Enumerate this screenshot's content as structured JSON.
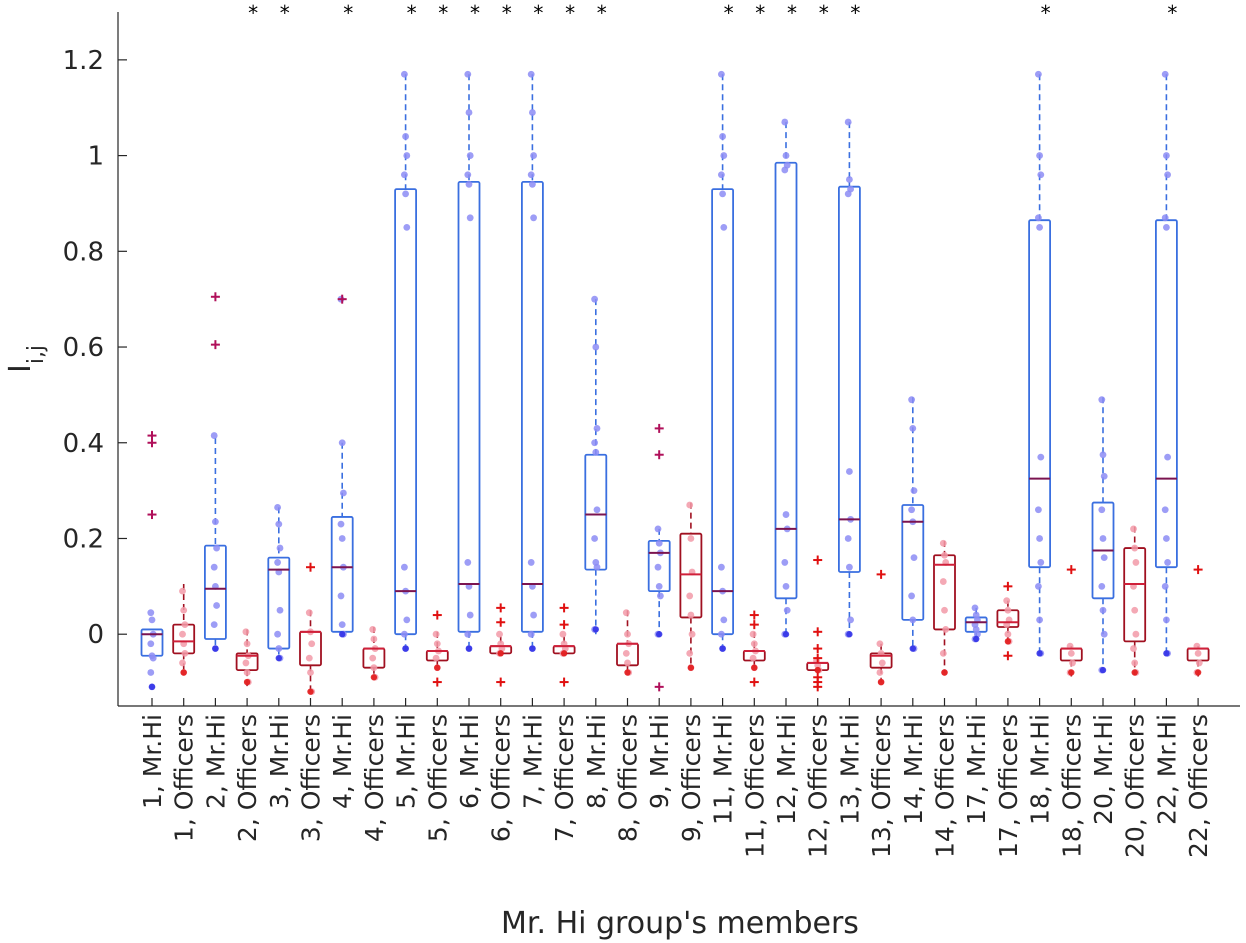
{
  "chart_data": {
    "type": "box",
    "title": "",
    "xlabel": "Mr. Hi group's members",
    "ylabel_main": "I",
    "ylabel_sub": "i,j",
    "ylim": [
      -0.15,
      1.3
    ],
    "yticks": [
      0,
      0.2,
      0.4,
      0.6,
      0.8,
      1,
      1.2
    ],
    "ytick_labels": [
      "0",
      "0.2",
      "0.4",
      "0.6",
      "0.8",
      "1",
      "1.2"
    ],
    "significance_marker": "*",
    "colors": {
      "mrhi_box": "#3a6fe0",
      "mrhi_median": "#7b1450",
      "mrhi_point": "#8c8cf5",
      "mrhi_point_dark": "#2b2be6",
      "officers_box": "#a01020",
      "officers_median": "#d0203a",
      "officers_point": "#f29aa8",
      "officers_point_dark": "#e01010",
      "outlier": "#b0105a",
      "officers_outlier": "#e01010"
    },
    "groups": [
      {
        "label": "1, Mr.Hi",
        "type": "mrhi",
        "q1": -0.045,
        "median": 0.0,
        "q3": 0.01,
        "whisker_low": -0.045,
        "whisker_high": 0.01,
        "outliers": [
          0.415,
          0.4,
          0.25
        ],
        "points": [
          0.045,
          0.03,
          0.0,
          -0.02,
          -0.045,
          -0.05,
          -0.08,
          -0.11
        ],
        "significant": false
      },
      {
        "label": "1, Officers",
        "type": "officers",
        "q1": -0.04,
        "median": -0.015,
        "q3": 0.02,
        "whisker_low": -0.085,
        "whisker_high": 0.105,
        "outliers": [],
        "points": [
          0.09,
          0.05,
          0.02,
          0.0,
          -0.02,
          -0.04,
          -0.06,
          -0.08
        ],
        "significant": false
      },
      {
        "label": "2, Mr.Hi",
        "type": "mrhi",
        "q1": -0.01,
        "median": 0.095,
        "q3": 0.185,
        "whisker_low": -0.035,
        "whisker_high": 0.41,
        "outliers": [
          0.705,
          0.605
        ],
        "points": [
          0.415,
          0.235,
          0.18,
          0.14,
          0.1,
          0.06,
          0.02,
          -0.03
        ],
        "significant": false
      },
      {
        "label": "2, Officers",
        "type": "officers",
        "q1": -0.075,
        "median": -0.045,
        "q3": -0.04,
        "whisker_low": -0.11,
        "whisker_high": 0.01,
        "outliers": [],
        "points": [
          0.005,
          -0.02,
          -0.045,
          -0.06,
          -0.08,
          -0.1
        ],
        "significant": true
      },
      {
        "label": "3, Mr.Hi",
        "type": "mrhi",
        "q1": -0.03,
        "median": 0.135,
        "q3": 0.16,
        "whisker_low": -0.05,
        "whisker_high": 0.265,
        "outliers": [],
        "points": [
          0.265,
          0.23,
          0.18,
          0.15,
          0.13,
          0.05,
          0.0,
          -0.03,
          -0.05
        ],
        "significant": true
      },
      {
        "label": "3, Officers",
        "type": "officers",
        "q1": -0.065,
        "median": 0.005,
        "q3": 0.005,
        "whisker_low": -0.12,
        "whisker_high": 0.05,
        "outliers": [
          0.14
        ],
        "points": [
          0.045,
          0.005,
          -0.02,
          -0.05,
          -0.08,
          -0.12
        ],
        "significant": false
      },
      {
        "label": "4, Mr.Hi",
        "type": "mrhi",
        "q1": 0.005,
        "median": 0.14,
        "q3": 0.245,
        "whisker_low": 0.0,
        "whisker_high": 0.4,
        "outliers": [
          0.7
        ],
        "points": [
          0.7,
          0.4,
          0.295,
          0.23,
          0.2,
          0.14,
          0.08,
          0.02,
          0.0
        ],
        "significant": true
      },
      {
        "label": "4, Officers",
        "type": "officers",
        "q1": -0.07,
        "median": -0.03,
        "q3": -0.03,
        "whisker_low": -0.09,
        "whisker_high": 0.015,
        "outliers": [],
        "points": [
          0.01,
          -0.01,
          -0.03,
          -0.05,
          -0.07,
          -0.09
        ],
        "significant": false
      },
      {
        "label": "5, Mr.Hi",
        "type": "mrhi",
        "q1": 0.0,
        "median": 0.09,
        "q3": 0.93,
        "whisker_low": -0.035,
        "whisker_high": 1.17,
        "outliers": [],
        "points": [
          1.17,
          1.04,
          1.0,
          0.96,
          0.92,
          0.85,
          0.14,
          0.09,
          0.03,
          0.0,
          -0.03
        ],
        "significant": true
      },
      {
        "label": "5, Officers",
        "type": "officers",
        "q1": -0.055,
        "median": -0.035,
        "q3": -0.035,
        "whisker_low": -0.075,
        "whisker_high": 0.005,
        "outliers": [
          0.04,
          -0.1
        ],
        "points": [
          0.0,
          -0.02,
          -0.035,
          -0.05,
          -0.07
        ],
        "significant": true
      },
      {
        "label": "6, Mr.Hi",
        "type": "mrhi",
        "q1": 0.005,
        "median": 0.105,
        "q3": 0.945,
        "whisker_low": -0.035,
        "whisker_high": 1.17,
        "outliers": [],
        "points": [
          1.17,
          1.09,
          1.0,
          0.96,
          0.94,
          0.87,
          0.15,
          0.1,
          0.04,
          0.0,
          -0.03
        ],
        "significant": true
      },
      {
        "label": "6, Officers",
        "type": "officers",
        "q1": -0.04,
        "median": -0.025,
        "q3": -0.025,
        "whisker_low": -0.045,
        "whisker_high": -0.005,
        "outliers": [
          0.055,
          0.025,
          -0.1
        ],
        "points": [
          0.0,
          -0.02,
          -0.03,
          -0.04
        ],
        "significant": true
      },
      {
        "label": "7, Mr.Hi",
        "type": "mrhi",
        "q1": 0.005,
        "median": 0.105,
        "q3": 0.945,
        "whisker_low": -0.035,
        "whisker_high": 1.17,
        "outliers": [],
        "points": [
          1.17,
          1.09,
          1.0,
          0.96,
          0.94,
          0.87,
          0.15,
          0.1,
          0.04,
          0.0,
          -0.03
        ],
        "significant": true
      },
      {
        "label": "7, Officers",
        "type": "officers",
        "q1": -0.04,
        "median": -0.025,
        "q3": -0.025,
        "whisker_low": -0.045,
        "whisker_high": -0.005,
        "outliers": [
          0.055,
          0.02,
          -0.1
        ],
        "points": [
          0.0,
          -0.02,
          -0.03,
          -0.04
        ],
        "significant": true
      },
      {
        "label": "8, Mr.Hi",
        "type": "mrhi",
        "q1": 0.135,
        "median": 0.25,
        "q3": 0.375,
        "whisker_low": 0.0,
        "whisker_high": 0.7,
        "outliers": [],
        "points": [
          0.7,
          0.6,
          0.43,
          0.4,
          0.38,
          0.26,
          0.2,
          0.15,
          0.14,
          0.01
        ],
        "significant": true
      },
      {
        "label": "8, Officers",
        "type": "officers",
        "q1": -0.065,
        "median": -0.02,
        "q3": -0.02,
        "whisker_low": -0.08,
        "whisker_high": 0.05,
        "outliers": [],
        "points": [
          0.045,
          0.0,
          -0.02,
          -0.04,
          -0.06,
          -0.08
        ],
        "significant": false
      },
      {
        "label": "9, Mr.Hi",
        "type": "mrhi",
        "q1": 0.09,
        "median": 0.17,
        "q3": 0.195,
        "whisker_low": -0.01,
        "whisker_high": 0.22,
        "outliers": [
          0.43,
          0.375,
          -0.11
        ],
        "points": [
          0.22,
          0.19,
          0.17,
          0.14,
          0.1,
          0.08,
          0.0
        ],
        "significant": false
      },
      {
        "label": "9, Officers",
        "type": "officers",
        "q1": 0.035,
        "median": 0.125,
        "q3": 0.21,
        "whisker_low": -0.07,
        "whisker_high": 0.275,
        "outliers": [],
        "points": [
          0.27,
          0.2,
          0.13,
          0.08,
          0.04,
          0.0,
          -0.04,
          -0.07
        ],
        "significant": false
      },
      {
        "label": "11, Mr.Hi",
        "type": "mrhi",
        "q1": 0.0,
        "median": 0.09,
        "q3": 0.93,
        "whisker_low": -0.035,
        "whisker_high": 1.17,
        "outliers": [],
        "points": [
          1.17,
          1.04,
          1.0,
          0.96,
          0.92,
          0.85,
          0.14,
          0.09,
          0.03,
          0.0,
          -0.03
        ],
        "significant": true
      },
      {
        "label": "11, Officers",
        "type": "officers",
        "q1": -0.055,
        "median": -0.035,
        "q3": -0.035,
        "whisker_low": -0.075,
        "whisker_high": 0.005,
        "outliers": [
          0.04,
          0.02,
          -0.1
        ],
        "points": [
          0.0,
          -0.02,
          -0.035,
          -0.05,
          -0.07
        ],
        "significant": true
      },
      {
        "label": "12, Mr.Hi",
        "type": "mrhi",
        "q1": 0.075,
        "median": 0.22,
        "q3": 0.985,
        "whisker_low": 0.0,
        "whisker_high": 1.07,
        "outliers": [],
        "points": [
          1.07,
          1.0,
          0.98,
          0.97,
          0.25,
          0.22,
          0.15,
          0.1,
          0.05,
          0.0
        ],
        "significant": true
      },
      {
        "label": "12, Officers",
        "type": "officers",
        "q1": -0.075,
        "median": -0.06,
        "q3": -0.06,
        "whisker_low": -0.08,
        "whisker_high": -0.055,
        "outliers": [
          0.155,
          0.005,
          -0.03,
          -0.05,
          -0.09,
          -0.1,
          -0.11
        ],
        "points": [
          -0.055,
          -0.065,
          -0.075
        ],
        "significant": true
      },
      {
        "label": "13, Mr.Hi",
        "type": "mrhi",
        "q1": 0.13,
        "median": 0.24,
        "q3": 0.935,
        "whisker_low": 0.0,
        "whisker_high": 1.07,
        "outliers": [],
        "points": [
          1.07,
          0.95,
          0.93,
          0.92,
          0.34,
          0.24,
          0.2,
          0.14,
          0.03,
          0.0
        ],
        "significant": true
      },
      {
        "label": "13, Officers",
        "type": "officers",
        "q1": -0.07,
        "median": -0.045,
        "q3": -0.04,
        "whisker_low": -0.1,
        "whisker_high": -0.02,
        "outliers": [
          0.125
        ],
        "points": [
          -0.02,
          -0.04,
          -0.06,
          -0.08,
          -0.1
        ],
        "significant": false
      },
      {
        "label": "14, Mr.Hi",
        "type": "mrhi",
        "q1": 0.03,
        "median": 0.235,
        "q3": 0.27,
        "whisker_low": -0.035,
        "whisker_high": 0.495,
        "outliers": [],
        "points": [
          0.49,
          0.43,
          0.3,
          0.26,
          0.235,
          0.16,
          0.08,
          0.03,
          -0.03
        ],
        "significant": false
      },
      {
        "label": "14, Officers",
        "type": "officers",
        "q1": 0.01,
        "median": 0.145,
        "q3": 0.165,
        "whisker_low": -0.08,
        "whisker_high": 0.195,
        "outliers": [],
        "points": [
          0.19,
          0.165,
          0.15,
          0.11,
          0.05,
          0.01,
          -0.04,
          -0.08
        ],
        "significant": false
      },
      {
        "label": "17, Mr.Hi",
        "type": "mrhi",
        "q1": 0.005,
        "median": 0.025,
        "q3": 0.035,
        "whisker_low": -0.01,
        "whisker_high": 0.055,
        "outliers": [],
        "points": [
          0.055,
          0.04,
          0.03,
          0.02,
          0.01,
          0.0,
          -0.01
        ],
        "significant": false
      },
      {
        "label": "17, Officers",
        "type": "officers",
        "q1": 0.015,
        "median": 0.025,
        "q3": 0.05,
        "whisker_low": -0.015,
        "whisker_high": 0.07,
        "outliers": [
          0.1,
          -0.045
        ],
        "points": [
          0.07,
          0.05,
          0.03,
          0.02,
          0.0,
          -0.015
        ],
        "significant": false
      },
      {
        "label": "18, Mr.Hi",
        "type": "mrhi",
        "q1": 0.14,
        "median": 0.325,
        "q3": 0.865,
        "whisker_low": -0.045,
        "whisker_high": 1.17,
        "outliers": [],
        "points": [
          1.17,
          1.0,
          0.96,
          0.87,
          0.85,
          0.37,
          0.26,
          0.2,
          0.15,
          0.1,
          0.03,
          -0.04
        ],
        "significant": true
      },
      {
        "label": "18, Officers",
        "type": "officers",
        "q1": -0.055,
        "median": -0.03,
        "q3": -0.03,
        "whisker_low": -0.09,
        "whisker_high": -0.025,
        "outliers": [
          0.135
        ],
        "points": [
          -0.025,
          -0.04,
          -0.06,
          -0.08
        ],
        "significant": false
      },
      {
        "label": "20, Mr.Hi",
        "type": "mrhi",
        "q1": 0.075,
        "median": 0.175,
        "q3": 0.275,
        "whisker_low": -0.075,
        "whisker_high": 0.495,
        "outliers": [],
        "points": [
          0.49,
          0.375,
          0.33,
          0.26,
          0.2,
          0.16,
          0.1,
          0.05,
          0.0,
          -0.075
        ],
        "significant": false
      },
      {
        "label": "20, Officers",
        "type": "officers",
        "q1": -0.015,
        "median": 0.105,
        "q3": 0.18,
        "whisker_low": -0.085,
        "whisker_high": 0.225,
        "outliers": [],
        "points": [
          0.22,
          0.18,
          0.15,
          0.1,
          0.05,
          0.0,
          -0.03,
          -0.06,
          -0.08
        ],
        "significant": false
      },
      {
        "label": "22, Mr.Hi",
        "type": "mrhi",
        "q1": 0.14,
        "median": 0.325,
        "q3": 0.865,
        "whisker_low": -0.045,
        "whisker_high": 1.17,
        "outliers": [],
        "points": [
          1.17,
          1.0,
          0.96,
          0.87,
          0.85,
          0.37,
          0.26,
          0.2,
          0.15,
          0.1,
          0.03,
          -0.04
        ],
        "significant": true
      },
      {
        "label": "22, Officers",
        "type": "officers",
        "q1": -0.055,
        "median": -0.03,
        "q3": -0.03,
        "whisker_low": -0.09,
        "whisker_high": -0.025,
        "outliers": [
          0.135
        ],
        "points": [
          -0.025,
          -0.04,
          -0.06,
          -0.08
        ],
        "significant": false
      }
    ]
  }
}
